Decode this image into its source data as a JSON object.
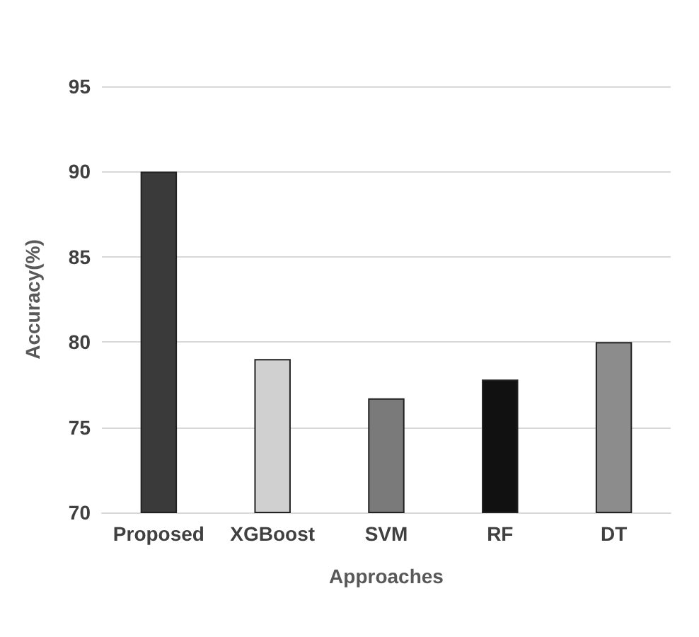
{
  "chart_data": {
    "type": "bar",
    "xlabel": "Approaches",
    "ylabel": "Accuracy(%)",
    "categories": [
      "Proposed",
      "XGBoost",
      "SVM",
      "RF",
      "DT"
    ],
    "values": [
      90,
      79,
      76.7,
      77.8,
      80
    ],
    "colors": [
      "#3a3a3a",
      "#d0d0d0",
      "#7a7a7a",
      "#111111",
      "#8c8c8c"
    ],
    "ylim": [
      70,
      95
    ],
    "yticks": [
      70,
      75,
      80,
      85,
      90,
      95
    ],
    "grid": "y"
  }
}
